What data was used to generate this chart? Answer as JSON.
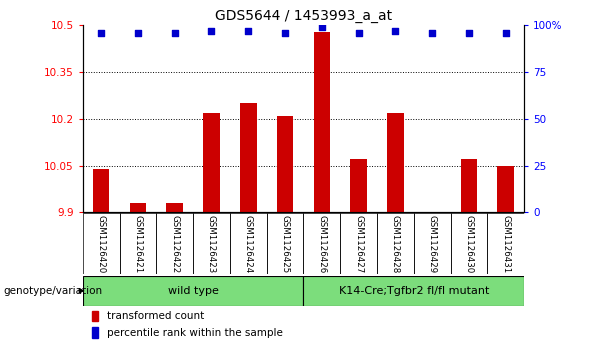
{
  "title": "GDS5644 / 1453993_a_at",
  "samples": [
    "GSM1126420",
    "GSM1126421",
    "GSM1126422",
    "GSM1126423",
    "GSM1126424",
    "GSM1126425",
    "GSM1126426",
    "GSM1126427",
    "GSM1126428",
    "GSM1126429",
    "GSM1126430",
    "GSM1126431"
  ],
  "bar_values": [
    10.04,
    9.93,
    9.93,
    10.22,
    10.25,
    10.21,
    10.48,
    10.07,
    10.22,
    9.9,
    10.07,
    10.05
  ],
  "percentile_values": [
    96,
    96,
    96,
    97,
    97,
    96,
    99,
    96,
    97,
    96,
    96,
    96
  ],
  "ymin": 9.9,
  "ymax": 10.5,
  "yticks": [
    9.9,
    10.05,
    10.2,
    10.35,
    10.5
  ],
  "ytick_labels": [
    "9.9",
    "10.05",
    "10.2",
    "10.35",
    "10.5"
  ],
  "y2min": 0,
  "y2max": 100,
  "y2ticks": [
    0,
    25,
    50,
    75,
    100
  ],
  "y2tick_labels": [
    "0",
    "25",
    "50",
    "75",
    "100%"
  ],
  "grid_values": [
    10.05,
    10.2,
    10.35
  ],
  "bar_color": "#cc0000",
  "dot_color": "#0000cc",
  "group1_label": "wild type",
  "group2_label": "K14-Cre;Tgfbr2 fl/fl mutant",
  "group1_indices": [
    0,
    1,
    2,
    3,
    4,
    5
  ],
  "group2_indices": [
    6,
    7,
    8,
    9,
    10,
    11
  ],
  "group_label_prefix": "genotype/variation",
  "legend_bar_label": "transformed count",
  "legend_dot_label": "percentile rank within the sample",
  "bg_color_plot": "#ffffff",
  "bg_color_xticklabels": "#c8c8c8",
  "bg_color_group": "#7cdd7c",
  "title_fontsize": 10,
  "tick_fontsize": 7.5,
  "label_fontsize": 8
}
